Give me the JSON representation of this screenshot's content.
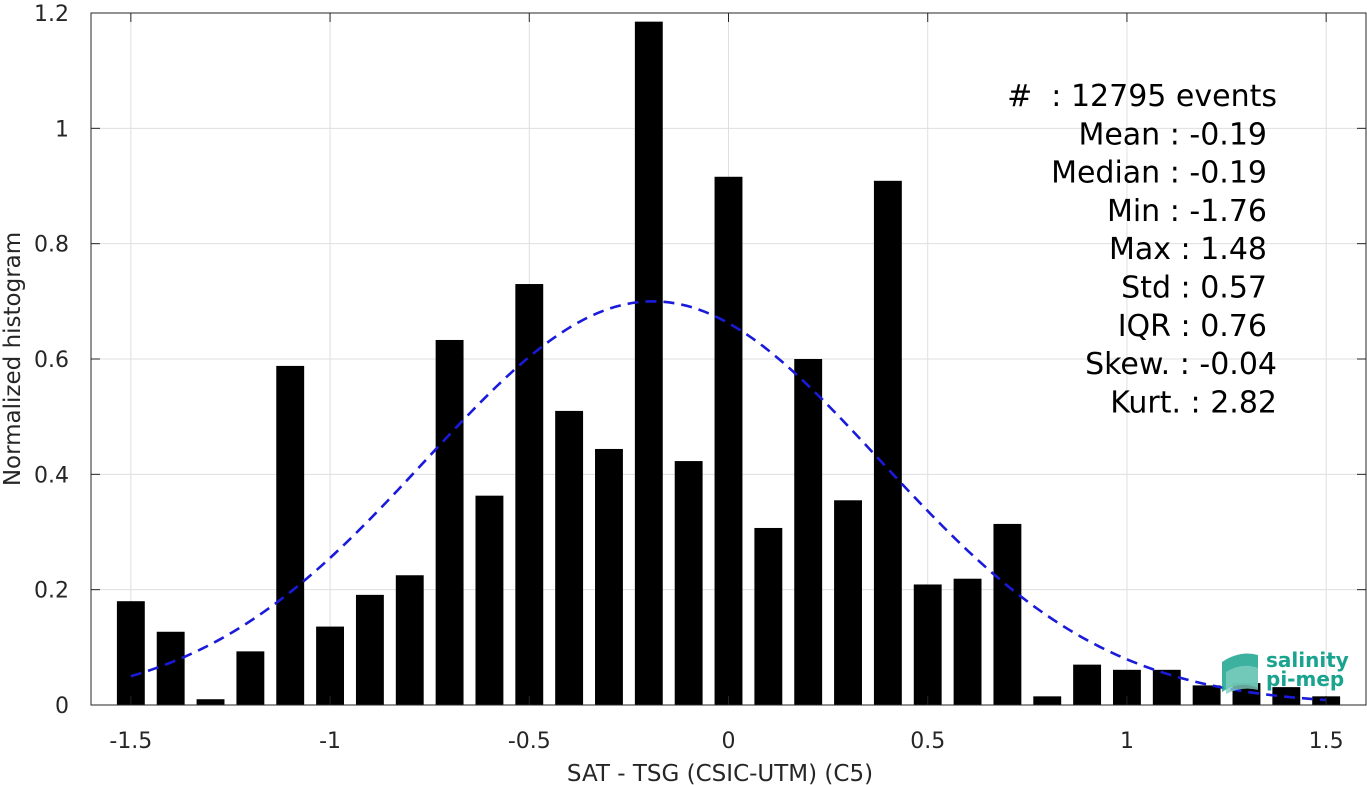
{
  "chart_data": {
    "type": "bar",
    "xlabel": "SAT - TSG (CSIC-UTM) (C5)",
    "ylabel": "Normalized histogram",
    "xlim": [
      -1.6,
      1.6
    ],
    "ylim": [
      0,
      1.2
    ],
    "xticks": [
      -1.5,
      -1,
      -0.5,
      0,
      0.5,
      1,
      1.5
    ],
    "xtick_labels": [
      "-1.5",
      "-1",
      "-0.5",
      "0",
      "0.5",
      "1",
      "1.5"
    ],
    "yticks": [
      0,
      0.2,
      0.4,
      0.6,
      0.8,
      1,
      1.2
    ],
    "ytick_labels": [
      "0",
      "0.2",
      "0.4",
      "0.6",
      "0.8",
      "1",
      "1.2"
    ],
    "grid": true,
    "bar_width": 0.07,
    "bar_color": "#000000",
    "bins": [
      -1.5,
      -1.4,
      -1.3,
      -1.2,
      -1.1,
      -1.0,
      -0.9,
      -0.8,
      -0.7,
      -0.6,
      -0.5,
      -0.4,
      -0.3,
      -0.2,
      -0.1,
      0.0,
      0.1,
      0.2,
      0.3,
      0.4,
      0.5,
      0.6,
      0.7,
      0.8,
      0.9,
      1.0,
      1.1,
      1.2,
      1.3,
      1.4,
      1.5
    ],
    "values": [
      0.18,
      0.127,
      0.01,
      0.093,
      0.588,
      0.136,
      0.191,
      0.225,
      0.633,
      0.363,
      0.73,
      0.51,
      0.444,
      1.185,
      0.423,
      0.916,
      0.307,
      0.6,
      0.355,
      0.909,
      0.209,
      0.219,
      0.314,
      0.015,
      0.07,
      0.061,
      0.061,
      0.034,
      0.038,
      0.031,
      0.015
    ],
    "fit_curve": {
      "type": "gaussian",
      "mean": -0.19,
      "std": 0.57,
      "peak": 0.7,
      "x_range": [
        -1.5,
        1.5
      ],
      "color": "#1a1adb",
      "style": "dashed"
    },
    "stats": [
      "#  : 12795 events",
      "Mean : -0.19",
      "Median : -0.19",
      "Min : -1.76",
      "Max : 1.48",
      "Std : 0.57",
      "IQR : 0.76",
      "Skew. : -0.04",
      "Kurt. : 2.82"
    ]
  },
  "logo": {
    "line1": "salinity",
    "line2": "pi-mep",
    "color": "#1aa38f"
  }
}
